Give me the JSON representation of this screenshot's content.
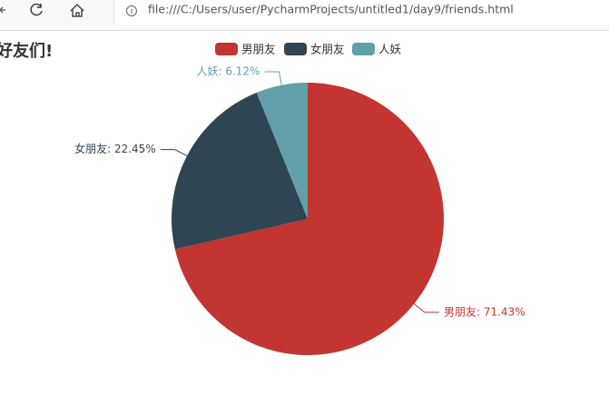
{
  "browser": {
    "url": "file:///C:/Users/user/PycharmProjects/untitled1/day9/friends.html"
  },
  "chart_data": {
    "type": "pie",
    "title": "好友们!",
    "categories": [
      "男朋友",
      "女朋友",
      "人妖"
    ],
    "values": [
      71.43,
      22.45,
      6.12
    ],
    "value_labels": [
      "男朋友: 71.43%",
      "女朋友: 22.45%",
      "人妖: 6.12%"
    ],
    "colors": [
      "#c23531",
      "#2f4554",
      "#61a0a8"
    ],
    "legend": "top"
  }
}
